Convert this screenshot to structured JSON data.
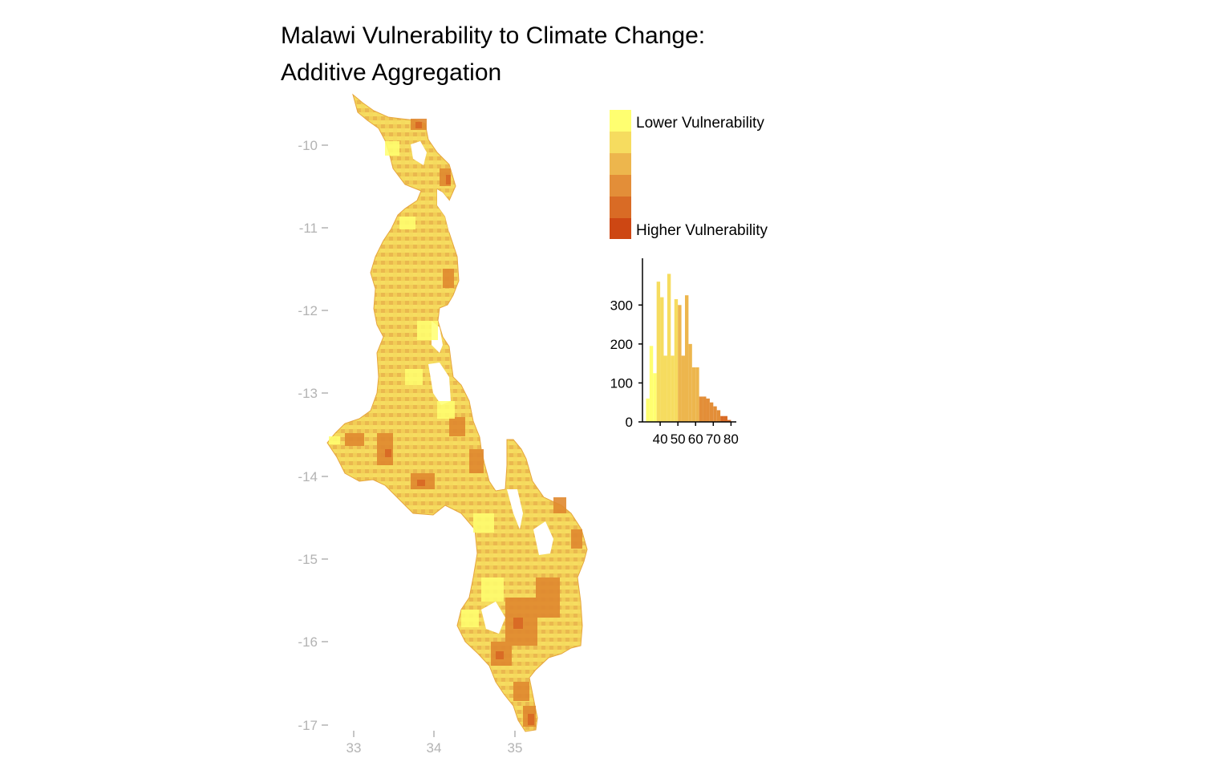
{
  "title": {
    "line1": "Malawi Vulnerability to Climate Change:",
    "line2": "Additive Aggregation"
  },
  "map": {
    "y_ticks": [
      "-10",
      "-11",
      "-12",
      "-13",
      "-14",
      "-15",
      "-16",
      "-17"
    ],
    "x_ticks": [
      "33",
      "34",
      "35"
    ],
    "grid": false
  },
  "legend": {
    "low_label": "Lower Vulnerability",
    "high_label": "Higher Vulnerability",
    "colors": [
      "#ffff70",
      "#f6dc5f",
      "#edb64d",
      "#e38e38",
      "#d96b25",
      "#cd4713"
    ]
  },
  "chart_data": {
    "type": "bar",
    "x": [
      33,
      35,
      37,
      39,
      41,
      43,
      45,
      47,
      49,
      51,
      53,
      55,
      57,
      59,
      61,
      63,
      65,
      67,
      69,
      71,
      73,
      75,
      77,
      79,
      81
    ],
    "values": [
      60,
      195,
      125,
      360,
      320,
      170,
      380,
      170,
      315,
      300,
      170,
      325,
      200,
      140,
      140,
      65,
      65,
      60,
      50,
      40,
      30,
      15,
      15,
      5,
      0
    ],
    "band_index": [
      0,
      0,
      0,
      1,
      1,
      1,
      1,
      1,
      1,
      2,
      2,
      2,
      2,
      2,
      2,
      3,
      3,
      3,
      3,
      3,
      3,
      4,
      4,
      4,
      4
    ],
    "x_ticks": [
      "40",
      "50",
      "60",
      "70",
      "80"
    ],
    "y_ticks": [
      "0",
      "100",
      "200",
      "300"
    ],
    "xlim": [
      30,
      83
    ],
    "ylim": [
      0,
      420
    ],
    "xlabel": "",
    "ylabel": ""
  }
}
